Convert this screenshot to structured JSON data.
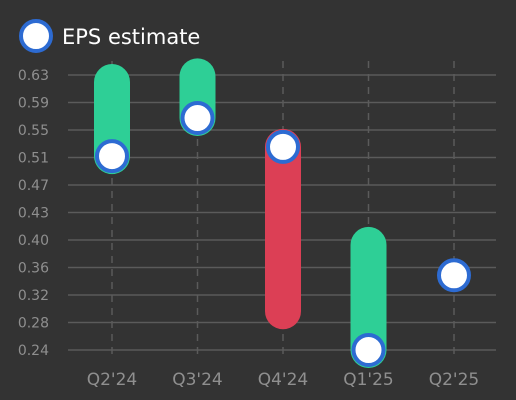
{
  "chart_data": {
    "type": "eps-surprise",
    "title": "",
    "xlabel": "",
    "ylabel": "",
    "legend": {
      "label": "EPS estimate",
      "position": "top-left"
    },
    "categories": [
      "Q2'24",
      "Q3'24",
      "Q4'24",
      "Q1'25",
      "Q2'25"
    ],
    "estimate": [
      0.515,
      0.569,
      0.528,
      0.24,
      0.346
    ],
    "actual": [
      0.62,
      0.628,
      0.295,
      0.389,
      null
    ],
    "y_ticks": [
      "0.24",
      "0.28",
      "0.32",
      "0.36",
      "0.40",
      "0.43",
      "0.47",
      "0.51",
      "0.55",
      "0.59",
      "0.63"
    ],
    "ylim": [
      0.24,
      0.63
    ],
    "grid": true,
    "colors": {
      "beat": "#2ecf96",
      "miss": "#dc3f55",
      "marker_fill": "#ffffff",
      "marker_stroke": "#2d6bd2",
      "grid": "#5b5b5b",
      "tick_text": "#8f8f8f",
      "background": "#333333"
    }
  }
}
